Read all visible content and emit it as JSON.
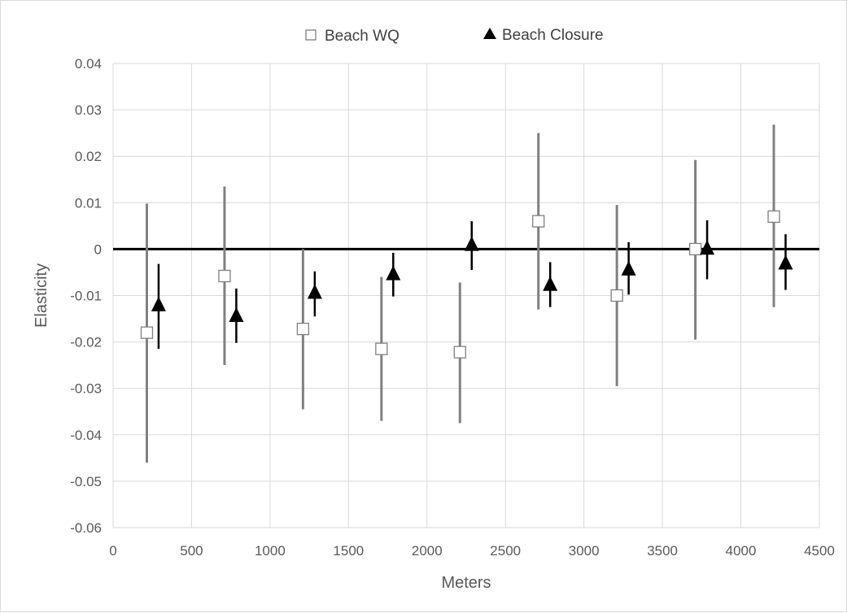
{
  "chart_data": {
    "type": "scatter",
    "title": "",
    "xlabel": "Meters",
    "ylabel": "Elasticity",
    "xlim": [
      0,
      4500
    ],
    "ylim": [
      -0.06,
      0.04
    ],
    "x_ticks": [
      0,
      500,
      1000,
      1500,
      2000,
      2500,
      3000,
      3500,
      4000,
      4500
    ],
    "y_ticks": [
      -0.06,
      -0.05,
      -0.04,
      -0.03,
      -0.02,
      -0.01,
      0,
      0.01,
      0.02,
      0.03,
      0.04
    ],
    "x_tick_labels": [
      "0",
      "500",
      "1000",
      "1500",
      "2000",
      "2500",
      "3000",
      "3500",
      "4000",
      "4500"
    ],
    "y_tick_labels": [
      "-0.06",
      "-0.05",
      "-0.04",
      "-0.03",
      "-0.02",
      "-0.01",
      "0",
      "0.01",
      "0.02",
      "0.03",
      "0.04"
    ],
    "grid": true,
    "zero_line": true,
    "legend_position": "top-center",
    "series": [
      {
        "name": "Beach WQ",
        "marker": "open-square",
        "color": "#808080",
        "x": [
          215,
          710,
          1210,
          1710,
          2210,
          2710,
          3210,
          3710,
          4210
        ],
        "y": [
          -0.018,
          -0.0058,
          -0.0172,
          -0.0215,
          -0.0222,
          0.006,
          -0.01,
          0.0,
          0.007
        ],
        "lower": [
          -0.046,
          -0.025,
          -0.0345,
          -0.037,
          -0.0375,
          -0.013,
          -0.0295,
          -0.0195,
          -0.0125
        ],
        "upper": [
          0.0098,
          0.0135,
          0.0,
          -0.006,
          -0.0072,
          0.025,
          0.0095,
          0.0192,
          0.0268
        ]
      },
      {
        "name": "Beach Closure",
        "marker": "filled-triangle",
        "color": "#000000",
        "x": [
          290,
          785,
          1285,
          1785,
          2285,
          2785,
          3285,
          3785,
          4285
        ],
        "y": [
          -0.0122,
          -0.0145,
          -0.0095,
          -0.0055,
          0.0008,
          -0.0078,
          -0.0045,
          0.0,
          -0.0032
        ],
        "lower": [
          -0.0215,
          -0.0202,
          -0.0145,
          -0.0102,
          -0.0045,
          -0.0125,
          -0.0098,
          -0.0065,
          -0.0088
        ],
        "upper": [
          -0.0032,
          -0.0085,
          -0.0048,
          -0.0008,
          0.006,
          -0.0028,
          0.0015,
          0.0062,
          0.0032
        ]
      }
    ]
  }
}
